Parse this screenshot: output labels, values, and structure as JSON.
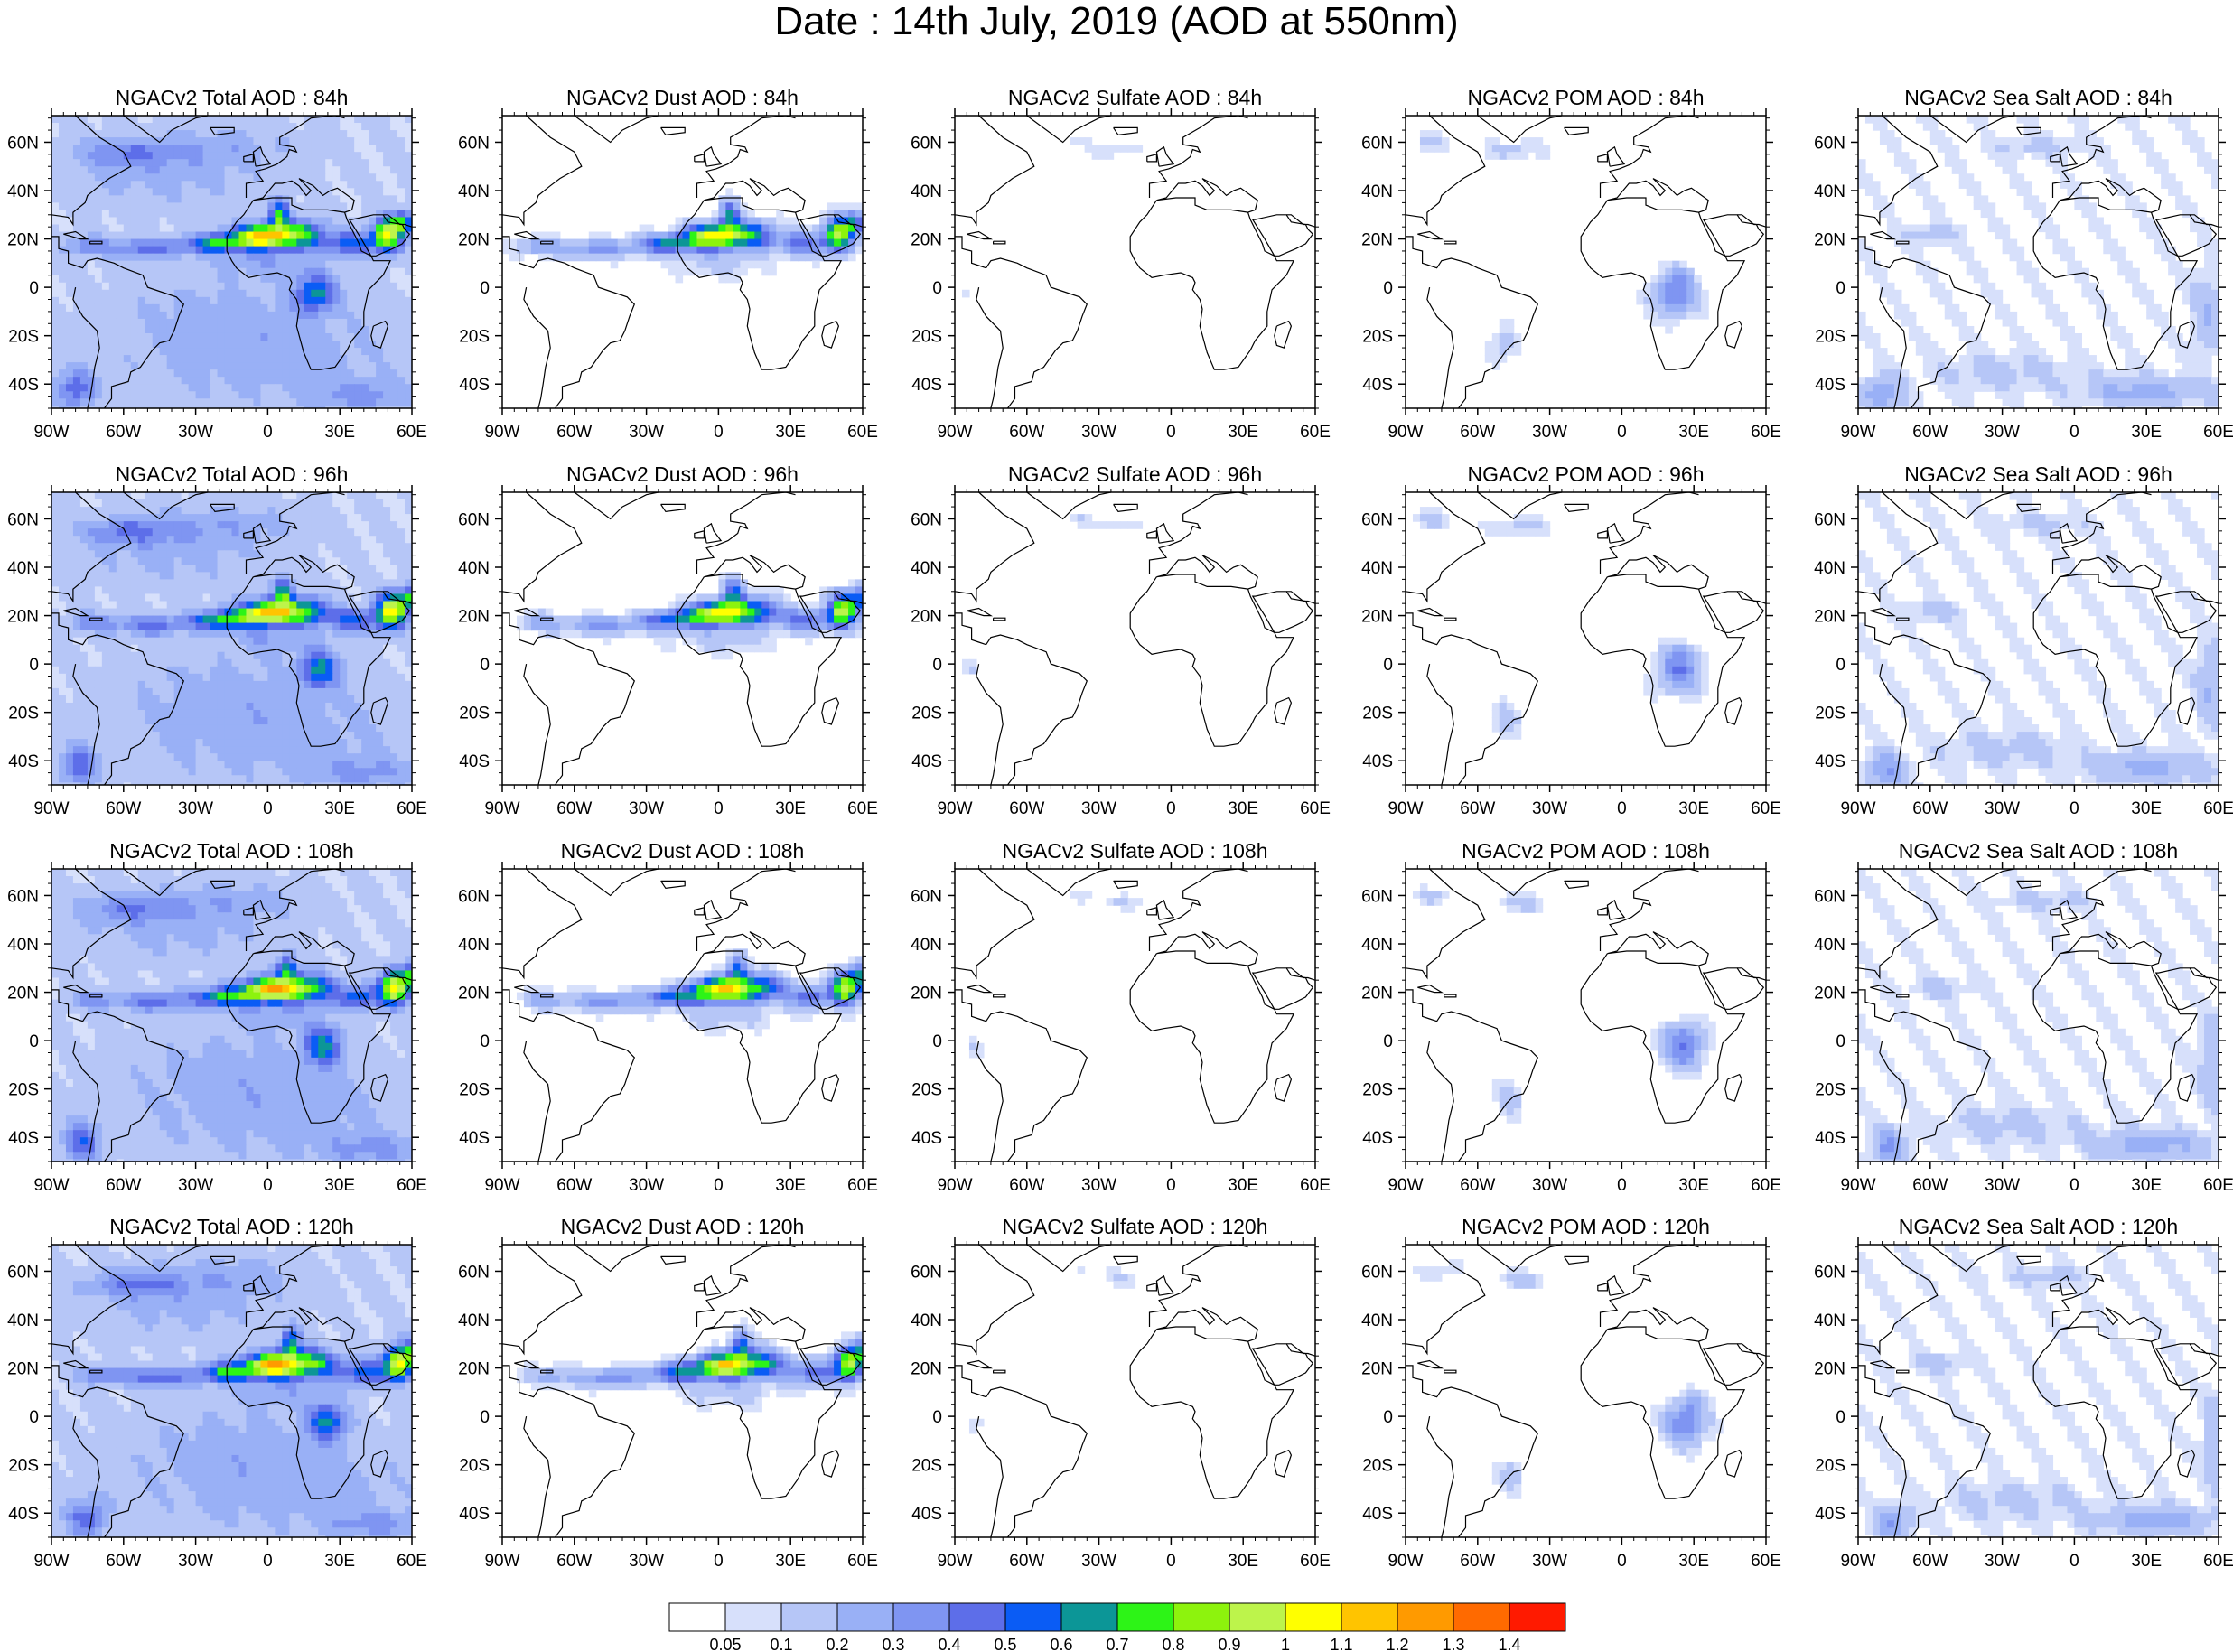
{
  "title": "Date : 14th July, 2019 (AOD at 550nm)",
  "lon_labels": [
    "90W",
    "60W",
    "30W",
    "0",
    "30E",
    "60E"
  ],
  "lat_labels": [
    "60N",
    "40N",
    "20N",
    "0",
    "20S",
    "40S"
  ],
  "colorbar": {
    "labels": [
      "0.05",
      "0.1",
      "0.2",
      "0.3",
      "0.4",
      "0.5",
      "0.6",
      "0.7",
      "0.8",
      "0.9",
      "1",
      "1.1",
      "1.2",
      "1.3",
      "1.4"
    ],
    "colors": [
      "#ffffff",
      "#d7e0fb",
      "#b6c6f7",
      "#99b0f6",
      "#7f95f2",
      "#5d6ee9",
      "#0a5cf5",
      "#0c9697",
      "#2df417",
      "#8df30d",
      "#bdf44b",
      "#ffff00",
      "#ffc400",
      "#ff9a00",
      "#ff6a00",
      "#ff1a00"
    ]
  },
  "rows": [
    {
      "panels": [
        {
          "title": "NGACv2 Total AOD : 84h",
          "field": "total"
        },
        {
          "title": "NGACv2 Dust AOD : 84h",
          "field": "dust"
        },
        {
          "title": "NGACv2 Sulfate AOD : 84h",
          "field": "sulfate"
        },
        {
          "title": "NGACv2 POM AOD : 84h",
          "field": "pom"
        },
        {
          "title": "NGACv2 Sea Salt AOD : 84h",
          "field": "seasalt"
        }
      ]
    },
    {
      "panels": [
        {
          "title": "NGACv2 Total AOD : 96h",
          "field": "total"
        },
        {
          "title": "NGACv2 Dust AOD : 96h",
          "field": "dust"
        },
        {
          "title": "NGACv2 Sulfate AOD : 96h",
          "field": "sulfate"
        },
        {
          "title": "NGACv2 POM AOD : 96h",
          "field": "pom"
        },
        {
          "title": "NGACv2 Sea Salt AOD : 96h",
          "field": "seasalt"
        }
      ]
    },
    {
      "panels": [
        {
          "title": "NGACv2 Total AOD : 108h",
          "field": "total"
        },
        {
          "title": "NGACv2 Dust AOD : 108h",
          "field": "dust"
        },
        {
          "title": "NGACv2 Sulfate AOD : 108h",
          "field": "sulfate"
        },
        {
          "title": "NGACv2 POM AOD : 108h",
          "field": "pom"
        },
        {
          "title": "NGACv2 Sea Salt AOD : 108h",
          "field": "seasalt"
        }
      ]
    },
    {
      "panels": [
        {
          "title": "NGACv2 Total AOD : 120h",
          "field": "total"
        },
        {
          "title": "NGACv2 Dust AOD : 120h",
          "field": "dust"
        },
        {
          "title": "NGACv2 Sulfate AOD : 120h",
          "field": "sulfate"
        },
        {
          "title": "NGACv2 POM AOD : 120h",
          "field": "pom"
        },
        {
          "title": "NGACv2 Sea Salt  AOD : 120h",
          "field": "seasalt"
        }
      ]
    }
  ]
}
